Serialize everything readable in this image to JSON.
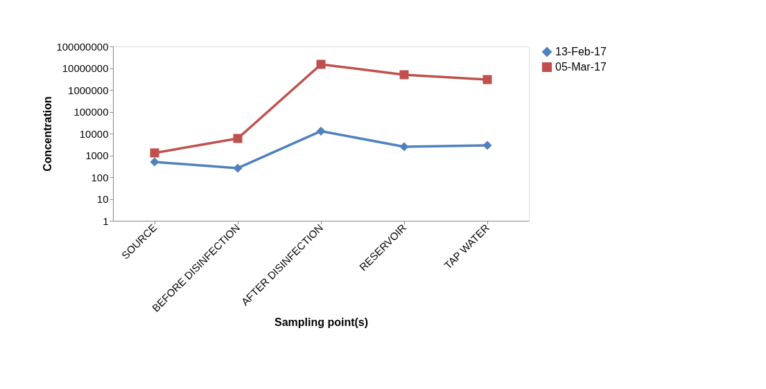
{
  "chart_data": {
    "type": "line",
    "xlabel": "Sampling point(s)",
    "ylabel": "Concentration",
    "categories": [
      "SOURCE",
      "BEFORE DISINFECTION",
      "AFTER DISINFECTION",
      "RESERVOIR",
      "TAP WATER"
    ],
    "series": [
      {
        "name": "13-Feb-17",
        "color": "#4f81bd",
        "marker": "diamond",
        "values": [
          500,
          260,
          13000,
          2500,
          2900
        ]
      },
      {
        "name": "05-Mar-17",
        "color": "#c0504d",
        "marker": "square",
        "values": [
          1300,
          6000,
          15000000,
          5000000,
          3000000
        ]
      }
    ],
    "log": true,
    "ylim": [
      1,
      100000000
    ],
    "yticks": [
      1,
      10,
      100,
      1000,
      10000,
      100000,
      1000000,
      10000000,
      100000000
    ],
    "grid": false,
    "legend": "top right",
    "line_style": "solid"
  }
}
